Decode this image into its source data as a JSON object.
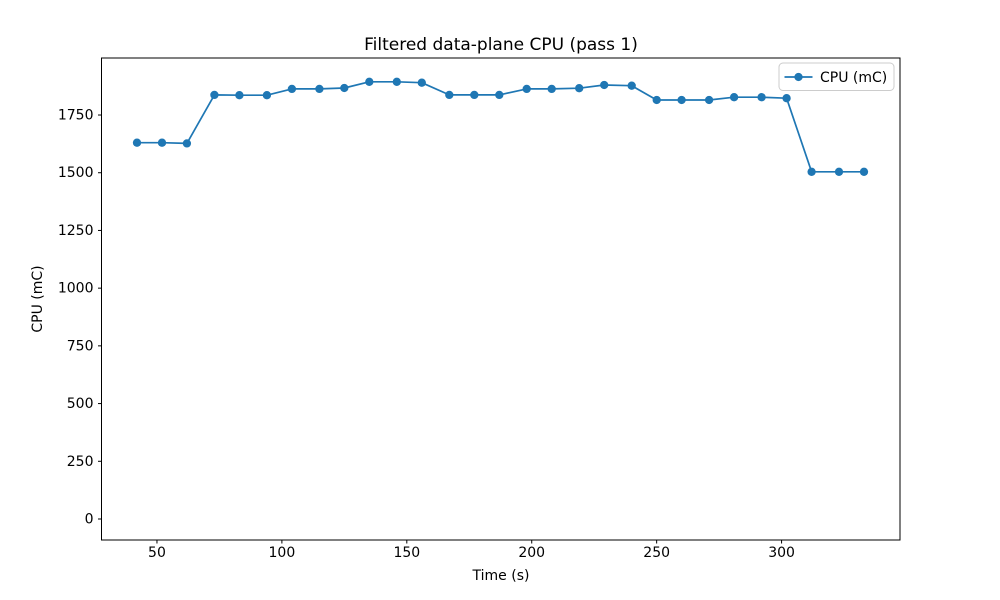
{
  "colors": {
    "series_blue": "#1f77b4",
    "spine": "#000000",
    "tick_text": "#000000",
    "legend_border": "#cccccc",
    "legend_fill": "#ffffff",
    "background": "#ffffff"
  },
  "chart_data": {
    "type": "line",
    "title": "Filtered data-plane CPU (pass 1)",
    "xlabel": "Time (s)",
    "ylabel": "CPU (mC)",
    "xlim": [
      27.8,
      347.4
    ],
    "ylim": [
      -91,
      1997
    ],
    "x_ticks": [
      50,
      100,
      150,
      200,
      250,
      300
    ],
    "y_ticks": [
      0,
      250,
      500,
      750,
      1000,
      1250,
      1500,
      1750
    ],
    "grid": false,
    "legend": {
      "position": "upper right",
      "entries": [
        "CPU (mC)"
      ]
    },
    "series": [
      {
        "name": "CPU (mC)",
        "color": "#1f77b4",
        "marker": "circle",
        "x": [
          42,
          52,
          62,
          73,
          83,
          94,
          104,
          115,
          125,
          135,
          146,
          156,
          167,
          177,
          187,
          198,
          208,
          219,
          229,
          240,
          250,
          260,
          271,
          281,
          292,
          302,
          312,
          323,
          333
        ],
        "y": [
          1630,
          1630,
          1627,
          1837,
          1836,
          1836,
          1863,
          1863,
          1867,
          1894,
          1894,
          1890,
          1837,
          1837,
          1837,
          1863,
          1863,
          1866,
          1880,
          1877,
          1815,
          1815,
          1815,
          1827,
          1827,
          1823,
          1504,
          1504,
          1504
        ]
      }
    ]
  }
}
